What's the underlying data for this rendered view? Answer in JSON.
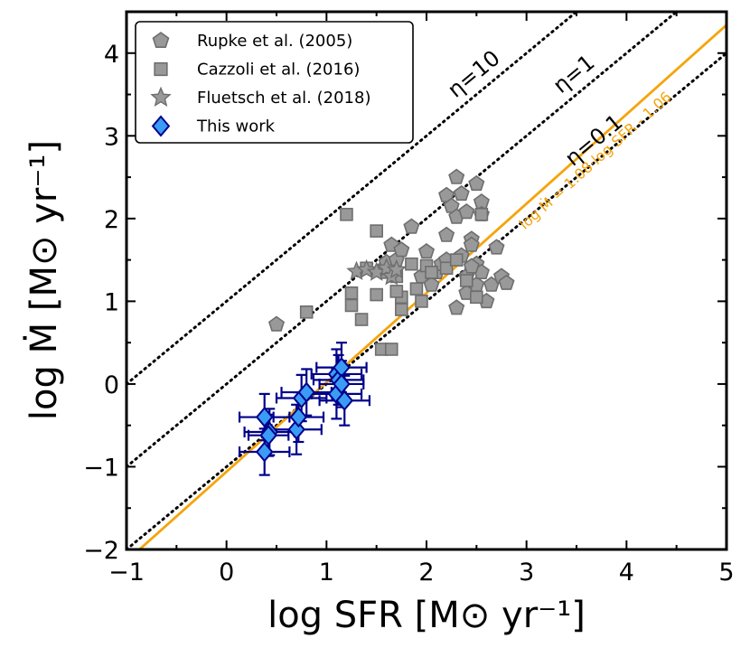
{
  "chart_data": {
    "type": "scatter",
    "xlabel": "log SFR [M⊙ yr⁻¹]",
    "ylabel": "log Ṁ [M⊙ yr⁻¹]",
    "xlim": [
      -1,
      5
    ],
    "ylim": [
      -2,
      4.5
    ],
    "xticks": [
      -1,
      0,
      1,
      2,
      3,
      4,
      5
    ],
    "yticks": [
      -2,
      -1,
      0,
      1,
      2,
      3,
      4
    ],
    "xtick_labels": [
      "−1",
      "0",
      "1",
      "2",
      "3",
      "4",
      "5"
    ],
    "ytick_labels": [
      "−2",
      "−1",
      "0",
      "1",
      "2",
      "3",
      "4"
    ],
    "legend": {
      "position": "top-left",
      "entries": [
        {
          "label": "Rupke et al. (2005)",
          "marker": "pentagon",
          "color": "#999999"
        },
        {
          "label": "Cazzoli et al. (2016)",
          "marker": "square",
          "color": "#999999"
        },
        {
          "label": "Fluetsch et al. (2018)",
          "marker": "star",
          "color": "#999999"
        },
        {
          "label": "This work",
          "marker": "diamond",
          "color": "#3a9cf5"
        }
      ]
    },
    "reference_lines": [
      {
        "label": "η=10",
        "slope": 1,
        "intercept": 1,
        "style": "dotted",
        "color": "#000000"
      },
      {
        "label": "η=1",
        "slope": 1,
        "intercept": 0,
        "style": "dotted",
        "color": "#000000"
      },
      {
        "label": "η=0.1",
        "slope": 1,
        "intercept": -1,
        "style": "dotted",
        "color": "#000000"
      }
    ],
    "fit_line": {
      "label": "log Ṁ = 1.08·log SFR - 1.06",
      "slope": 1.08,
      "intercept": -1.06,
      "color": "#f5a40a"
    },
    "series": [
      {
        "name": "Rupke et al. (2005)",
        "marker": "pentagon",
        "points": [
          [
            0.5,
            0.72
          ],
          [
            1.55,
            1.38
          ],
          [
            1.6,
            1.47
          ],
          [
            1.65,
            1.68
          ],
          [
            1.7,
            1.5
          ],
          [
            1.75,
            1.62
          ],
          [
            1.85,
            1.9
          ],
          [
            1.95,
            1.3
          ],
          [
            2.0,
            1.6
          ],
          [
            2.05,
            1.2
          ],
          [
            2.1,
            1.35
          ],
          [
            2.15,
            1.45
          ],
          [
            2.2,
            1.8
          ],
          [
            2.2,
            2.28
          ],
          [
            2.25,
            2.15
          ],
          [
            2.3,
            2.5
          ],
          [
            2.3,
            2.02
          ],
          [
            2.35,
            2.3
          ],
          [
            2.35,
            1.55
          ],
          [
            2.4,
            2.08
          ],
          [
            2.4,
            1.3
          ],
          [
            2.4,
            1.1
          ],
          [
            2.45,
            1.75
          ],
          [
            2.45,
            1.68
          ],
          [
            2.5,
            2.42
          ],
          [
            2.5,
            1.45
          ],
          [
            2.5,
            1.2
          ],
          [
            2.55,
            2.2
          ],
          [
            2.55,
            2.05
          ],
          [
            2.55,
            1.35
          ],
          [
            2.6,
            1.0
          ],
          [
            2.65,
            1.2
          ],
          [
            2.7,
            1.65
          ],
          [
            2.75,
            1.3
          ],
          [
            2.8,
            1.22
          ],
          [
            2.3,
            0.92
          ],
          [
            2.45,
            1.42
          ],
          [
            2.2,
            1.5
          ]
        ]
      },
      {
        "name": "Cazzoli et al. (2016)",
        "marker": "square",
        "points": [
          [
            0.8,
            0.87
          ],
          [
            1.2,
            2.05
          ],
          [
            1.25,
            1.1
          ],
          [
            1.25,
            0.95
          ],
          [
            1.35,
            0.78
          ],
          [
            1.4,
            1.4
          ],
          [
            1.5,
            1.85
          ],
          [
            1.5,
            1.08
          ],
          [
            1.55,
            0.42
          ],
          [
            1.65,
            0.42
          ],
          [
            1.7,
            1.3
          ],
          [
            1.75,
            1.05
          ],
          [
            1.75,
            0.9
          ],
          [
            1.85,
            1.45
          ],
          [
            1.9,
            1.15
          ],
          [
            1.95,
            1.0
          ],
          [
            2.0,
            1.43
          ],
          [
            2.05,
            1.35
          ],
          [
            2.2,
            1.4
          ],
          [
            2.3,
            1.5
          ],
          [
            2.4,
            1.25
          ],
          [
            2.5,
            1.05
          ],
          [
            2.55,
            2.05
          ],
          [
            1.6,
            1.35
          ],
          [
            1.7,
            1.12
          ]
        ]
      },
      {
        "name": "Fluetsch et al. (2018)",
        "marker": "star",
        "points": [
          [
            1.3,
            1.36
          ],
          [
            1.4,
            1.38
          ],
          [
            1.5,
            1.35
          ],
          [
            1.6,
            1.4
          ],
          [
            1.65,
            1.3
          ],
          [
            1.7,
            1.38
          ]
        ]
      },
      {
        "name": "This work",
        "marker": "diamond",
        "points": [
          {
            "x": 0.38,
            "y": -0.4,
            "xerr": 0.25,
            "yerr": 0.28
          },
          {
            "x": 0.38,
            "y": -0.82,
            "xerr": 0.25,
            "yerr": 0.28
          },
          {
            "x": 0.43,
            "y": -0.58,
            "xerr": 0.25,
            "yerr": 0.28
          },
          {
            "x": 0.42,
            "y": -0.62,
            "xerr": 0.2,
            "yerr": 0.25
          },
          {
            "x": 0.7,
            "y": -0.55,
            "xerr": 0.25,
            "yerr": 0.3
          },
          {
            "x": 0.72,
            "y": -0.4,
            "xerr": 0.25,
            "yerr": 0.3
          },
          {
            "x": 0.75,
            "y": -0.17,
            "xerr": 0.25,
            "yerr": 0.28
          },
          {
            "x": 0.8,
            "y": -0.1,
            "xerr": 0.25,
            "yerr": 0.28
          },
          {
            "x": 1.1,
            "y": 0.12,
            "xerr": 0.25,
            "yerr": 0.3
          },
          {
            "x": 1.1,
            "y": -0.12,
            "xerr": 0.25,
            "yerr": 0.3
          },
          {
            "x": 1.12,
            "y": 0.05,
            "xerr": 0.25,
            "yerr": 0.3
          },
          {
            "x": 1.15,
            "y": 0.2,
            "xerr": 0.25,
            "yerr": 0.3
          },
          {
            "x": 1.18,
            "y": -0.2,
            "xerr": 0.25,
            "yerr": 0.3
          },
          {
            "x": 1.15,
            "y": 0.0,
            "xerr": 0.22,
            "yerr": 0.28
          }
        ]
      }
    ]
  }
}
